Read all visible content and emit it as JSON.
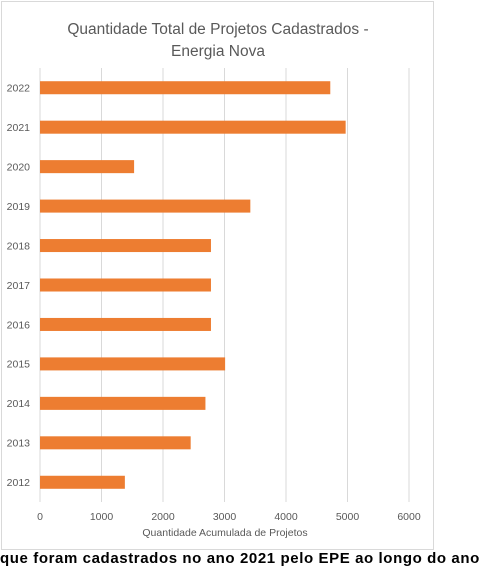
{
  "chart_data": {
    "type": "bar",
    "orientation": "horizontal",
    "title_lines": [
      "Quantidade Total de Projetos Cadastrados -",
      "Energia Nova"
    ],
    "xlabel": "Quantidade Acumulada de Projetos",
    "ylabel": "",
    "categories": [
      "2022",
      "2021",
      "2020",
      "2019",
      "2018",
      "2017",
      "2016",
      "2015",
      "2014",
      "2013",
      "2012"
    ],
    "values": [
      4720,
      4970,
      1530,
      3420,
      2780,
      2780,
      2780,
      3010,
      2690,
      2450,
      1380
    ],
    "xlim": [
      0,
      6000
    ],
    "xticks": [
      "0",
      "1000",
      "2000",
      "3000",
      "4000",
      "5000",
      "6000"
    ],
    "grid": "vertical",
    "legend": "none",
    "bar_color": "#ed7d31"
  },
  "footer_partial_text": "que foram cadastrados no ano 2021 pelo EPE ao longo do ano"
}
